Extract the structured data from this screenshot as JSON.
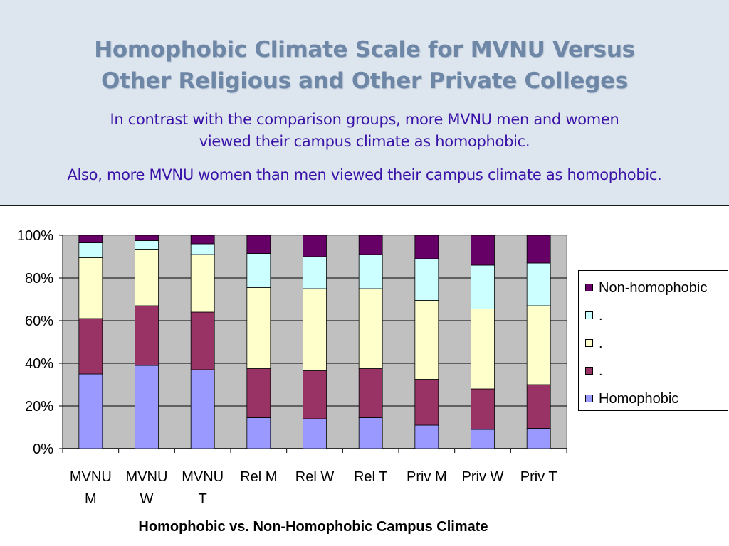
{
  "header": {
    "title_line1": "Homophobic Climate Scale for MVNU Versus",
    "title_line2": "Other Religious and Other Private Colleges",
    "subtitle_line1": "In contrast with the comparison groups, more MVNU men and women",
    "subtitle_line2": "viewed their campus climate as homophobic.",
    "subtitle_line3": "Also, more MVNU women than men viewed their campus climate as homophobic."
  },
  "chart_data": {
    "type": "bar",
    "stacked": "percent",
    "categories": [
      "MVNU M",
      "MVNU W",
      "MVNU T",
      "Rel M",
      "Rel W",
      "Rel T",
      "Priv M",
      "Priv W",
      "Priv T"
    ],
    "category_label_lines": [
      [
        "MVNU",
        "M"
      ],
      [
        "MVNU",
        "W"
      ],
      [
        "MVNU",
        "T"
      ],
      [
        "Rel M"
      ],
      [
        "Rel W"
      ],
      [
        "Rel T"
      ],
      [
        "Priv M"
      ],
      [
        "Priv W"
      ],
      [
        "Priv T"
      ]
    ],
    "series": [
      {
        "name": "Homophobic",
        "color": "#9999ff",
        "values": [
          35,
          39,
          37,
          14.5,
          14,
          14.5,
          11,
          9,
          9.5
        ]
      },
      {
        "name": ".",
        "color": "#993366",
        "values": [
          26,
          28,
          27,
          23,
          22.5,
          23,
          21.5,
          19,
          20.5
        ]
      },
      {
        "name": ".",
        "color": "#ffffcc",
        "values": [
          28.5,
          26.5,
          27,
          38,
          38.5,
          37.5,
          37,
          37.5,
          37
        ]
      },
      {
        "name": ".",
        "color": "#ccffff",
        "values": [
          7,
          4,
          5,
          16,
          15,
          16,
          19.5,
          20.5,
          20
        ]
      },
      {
        "name": "Non-homophobic",
        "color": "#660066",
        "values": [
          3.5,
          2.5,
          4,
          8.5,
          10,
          9,
          11,
          14,
          13
        ]
      }
    ],
    "yticks": [
      "0%",
      "20%",
      "40%",
      "60%",
      "80%",
      "100%"
    ],
    "ylim": [
      0,
      100
    ],
    "xlabel": "Homophobic vs. Non-Homophobic Campus Climate",
    "ylabel": "",
    "grid": true,
    "plot_background": "#c0c0c0",
    "legend_position": "right"
  }
}
